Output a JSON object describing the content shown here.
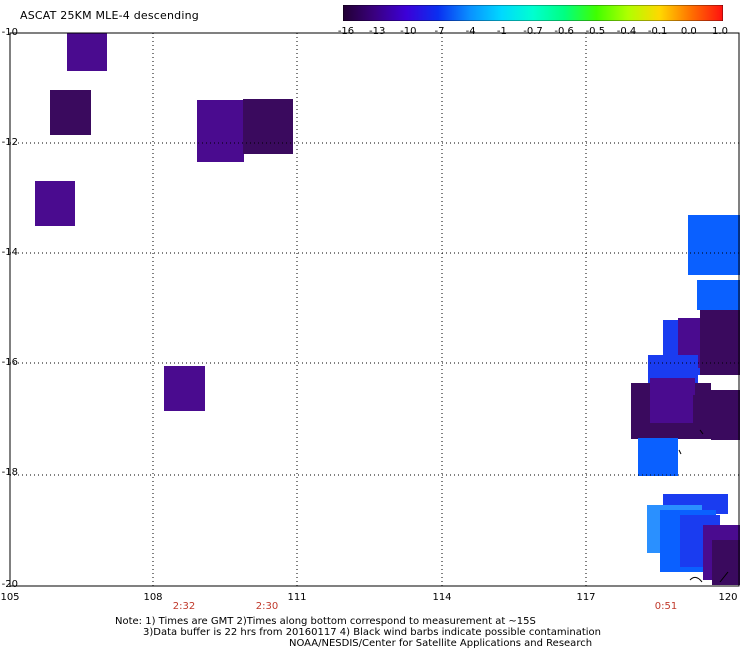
{
  "header": {
    "title": "ASCAT 25KM MLE-4 descending"
  },
  "colorbar": {
    "labels": [
      "-16",
      "-13",
      "-10",
      "-7",
      "-4",
      "-1",
      "-0.7",
      "-0.6",
      "-0.5",
      "-0.4",
      "-0.1",
      "0.0",
      "1.0"
    ],
    "colors": [
      "#220033",
      "#3a0080",
      "#3c00d8",
      "#0a2ff0",
      "#0a90ff",
      "#00d8ff",
      "#00ffd0",
      "#00ff80",
      "#40ff00",
      "#b0ff00",
      "#ffd800",
      "#ff7000",
      "#ff1010"
    ]
  },
  "map": {
    "lat_labels": [
      "-10",
      "-12",
      "-14",
      "-16",
      "-18",
      "-20"
    ],
    "lon_labels": [
      "105",
      "108",
      "111",
      "114",
      "117",
      "120"
    ],
    "time_labels": [
      "2:32",
      "2:30",
      "0:51"
    ]
  },
  "notes": {
    "line1": "Note: 1) Times are GMT 2)Times along bottom correspond to measurement at ~15S",
    "line2": "3)Data buffer is 22 hrs from 20160117 4) Black wind barbs indicate possible contamination",
    "line3": "NOAA/NESDIS/Center for Satellite Applications and Research"
  },
  "colors": {
    "dark_purple": "#3a0a5e",
    "purple": "#4a0b8f",
    "blue": "#1a3cf0",
    "mid_blue": "#0a60ff",
    "light_blue": "#2a90ff"
  }
}
